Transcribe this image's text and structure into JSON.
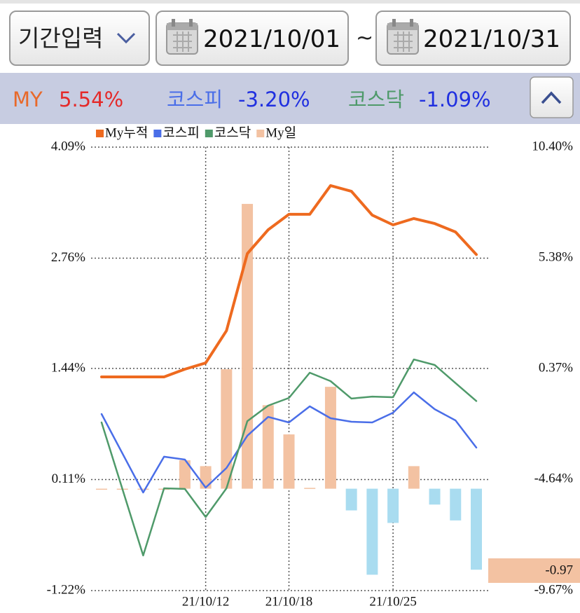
{
  "header": {
    "period_button": "기간입력",
    "start_date": "2021/10/01",
    "separator": "~",
    "end_date": "2021/10/31"
  },
  "summary": [
    {
      "label": "MY",
      "value": "5.54%"
    },
    {
      "label": "코스피",
      "value": "-3.20%"
    },
    {
      "label": "코스닥",
      "value": "-1.09%"
    }
  ],
  "chart_data": {
    "type": "combo",
    "categories": [
      null,
      null,
      null,
      null,
      null,
      "21/10/12",
      null,
      null,
      null,
      "21/10/18",
      null,
      null,
      null,
      null,
      "21/10/25",
      null,
      null,
      null,
      null
    ],
    "series": [
      {
        "name": "My누적",
        "kind": "line",
        "axis": "y2",
        "color": "#ee6a1f",
        "values": [
          0,
          0,
          0,
          0,
          0.35,
          0.63,
          2.09,
          5.58,
          6.66,
          7.36,
          7.36,
          8.66,
          8.4,
          7.32,
          6.88,
          7.17,
          6.94,
          6.56,
          5.54
        ]
      },
      {
        "name": "코스피",
        "kind": "line",
        "axis": "y2",
        "color": "#4a6ee8",
        "values": [
          -1.68,
          -3.46,
          -5.23,
          -3.61,
          -3.74,
          -5.01,
          -4.12,
          -2.66,
          -1.81,
          -2.06,
          -1.33,
          -1.87,
          -2.03,
          -2.06,
          -1.62,
          -0.7,
          -1.46,
          -1.97,
          -3.2
        ]
      },
      {
        "name": "코스닥",
        "kind": "line",
        "axis": "y2",
        "color": "#4f9a6a",
        "values": [
          -2.06,
          -5.07,
          -8.08,
          -5.04,
          -5.07,
          -6.34,
          -5.04,
          -2.0,
          -1.3,
          -0.95,
          0.19,
          -0.19,
          -0.98,
          -0.89,
          -0.92,
          0.79,
          0.54,
          -0.28,
          -1.09
        ]
      },
      {
        "name": "My일",
        "kind": "bar",
        "axis": "y",
        "color": "#f3c2a2",
        "negative_color": "#a9dcf0",
        "values": [
          0,
          0,
          0,
          0,
          0.34,
          0.27,
          1.43,
          3.41,
          1.0,
          0.65,
          0.01,
          1.22,
          -0.26,
          -1.03,
          -0.41,
          0.27,
          -0.19,
          -0.38,
          -0.97
        ]
      }
    ],
    "ylim": [
      -1.22,
      4.09
    ],
    "yticks": [
      {
        "value": -1.22,
        "label": "-1.22%"
      },
      {
        "value": 0.11,
        "label": "0.11%"
      },
      {
        "value": 1.44,
        "label": "1.44%"
      },
      {
        "value": 2.76,
        "label": "2.76%"
      },
      {
        "value": 4.09,
        "label": "4.09%"
      }
    ],
    "y2lim": [
      -9.67,
      10.4
    ],
    "y2ticks": [
      {
        "value": -9.67,
        "label": "-9.67%"
      },
      {
        "value": -4.64,
        "label": "-4.64%"
      },
      {
        "value": 0.37,
        "label": "0.37%"
      },
      {
        "value": 5.38,
        "label": "5.38%"
      },
      {
        "value": 10.4,
        "label": "10.40%"
      }
    ],
    "grid": true
  }
}
